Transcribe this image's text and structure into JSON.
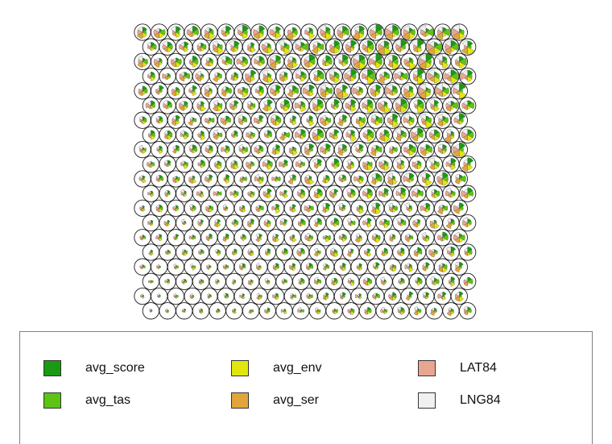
{
  "chart_data": {
    "type": "som-codes-fan",
    "grid": {
      "columns": 20,
      "rows": 20,
      "topology": "hexagonal"
    },
    "variables": [
      {
        "name": "avg_score",
        "color": "#1a9a12"
      },
      {
        "name": "avg_tas",
        "color": "#5cc414"
      },
      {
        "name": "avg_env",
        "color": "#e2e60e"
      },
      {
        "name": "avg_ser",
        "color": "#e0a63c"
      },
      {
        "name": "LAT84",
        "color": "#e8a691"
      },
      {
        "name": "LNG84",
        "color": "#f0f0f0"
      }
    ],
    "legend": {
      "placement": "bottom",
      "columns": 3
    }
  }
}
